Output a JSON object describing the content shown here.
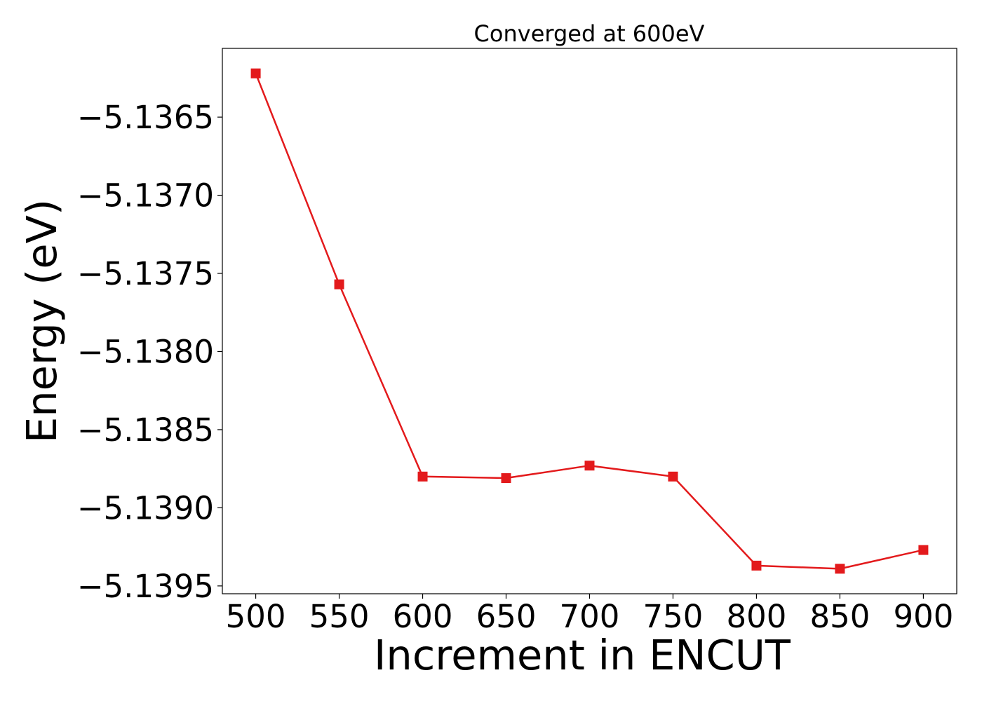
{
  "chart_data": {
    "type": "line",
    "title": "Converged at 600eV",
    "xlabel": "Increment in ENCUT",
    "ylabel": "Energy (eV)",
    "x": [
      500,
      550,
      600,
      650,
      700,
      750,
      800,
      850,
      900
    ],
    "series": [
      {
        "values": [
          -5.13622,
          -5.13757,
          -5.1388,
          -5.13881,
          -5.13873,
          -5.1388,
          -5.13937,
          -5.13939,
          -5.13927
        ],
        "color": "#e31a1c",
        "marker": "square"
      }
    ],
    "xlim": [
      480,
      920
    ],
    "ylim": [
      -5.13955,
      -5.13606
    ],
    "xticks": [
      500,
      550,
      600,
      650,
      700,
      750,
      800,
      850,
      900
    ],
    "xtick_labels": [
      "500",
      "550",
      "600",
      "650",
      "700",
      "750",
      "800",
      "850",
      "900"
    ],
    "yticks": [
      -5.1365,
      -5.137,
      -5.1375,
      -5.138,
      -5.1385,
      -5.139,
      -5.1395
    ],
    "ytick_labels": [
      "−5.1365",
      "−5.1370",
      "−5.1375",
      "−5.1380",
      "−5.1385",
      "−5.1390",
      "−5.1395"
    ],
    "grid": false,
    "legend": "none"
  }
}
